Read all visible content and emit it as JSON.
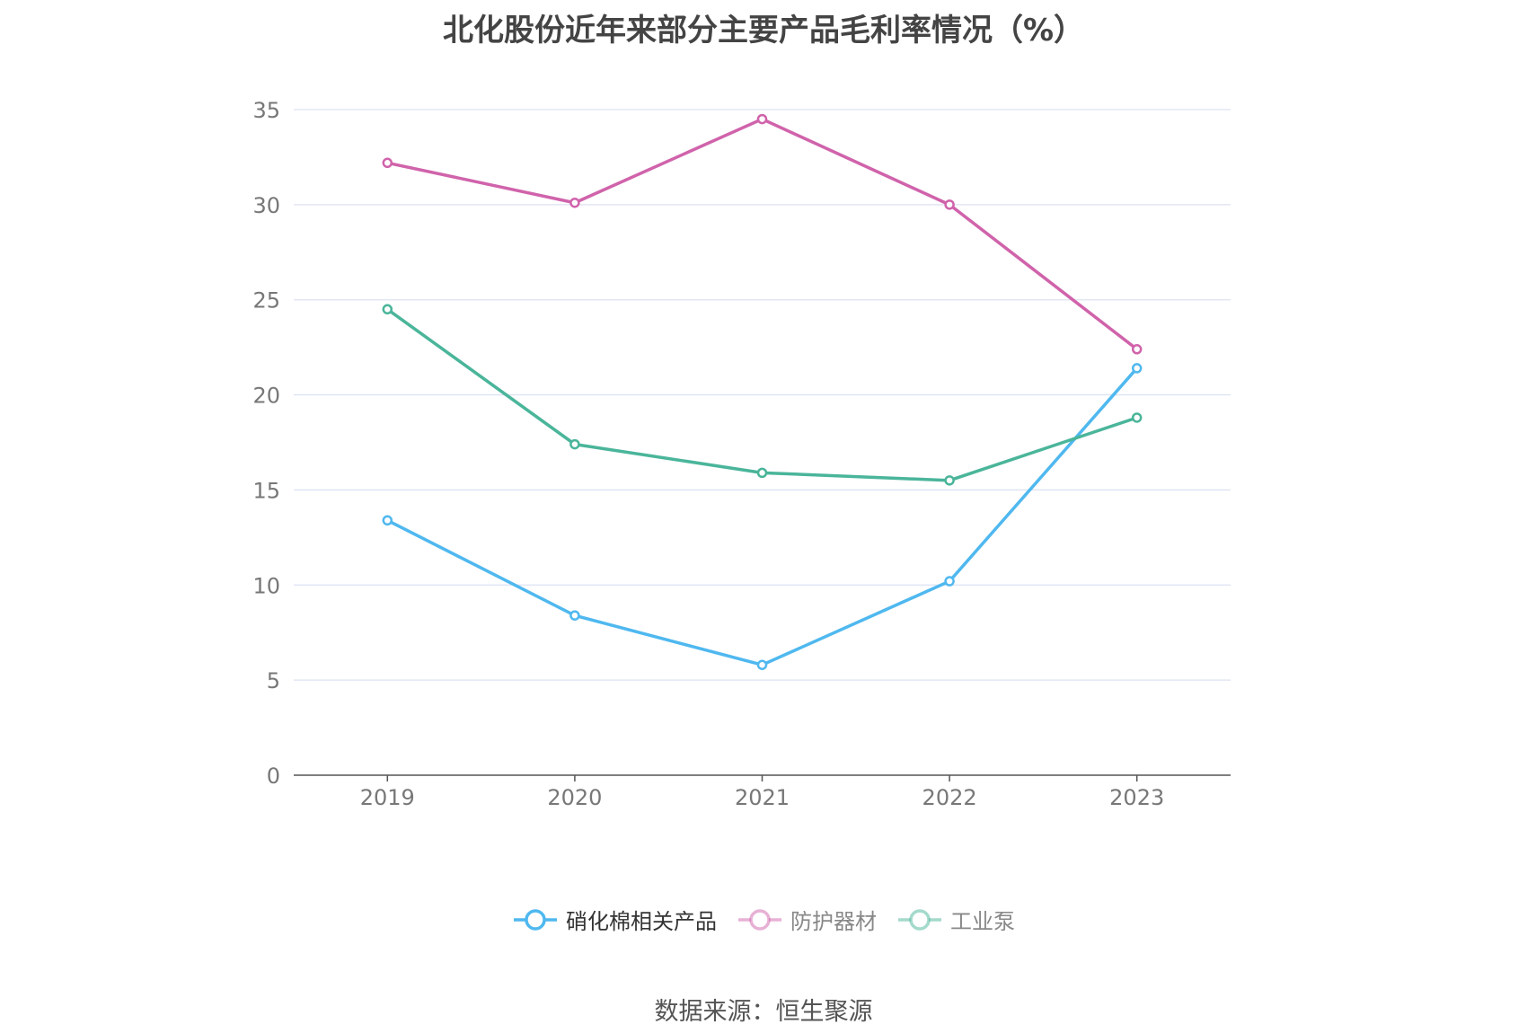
{
  "title": "北化股份近年来部分主要产品毛利率情况（%）",
  "source": "数据来源：恒生聚源",
  "chart_data": {
    "type": "line",
    "title": "北化股份近年来部分主要产品毛利率情况（%）",
    "categories": [
      "2019",
      "2020",
      "2021",
      "2022",
      "2023"
    ],
    "ylim": [
      0,
      35
    ],
    "yticks": [
      0,
      5,
      10,
      15,
      20,
      25,
      30,
      35
    ],
    "grid": true,
    "legend_position": "bottom",
    "series": [
      {
        "name": "硝化棉相关产品",
        "color": "#4fb8ef",
        "values": [
          13.4,
          8.4,
          5.8,
          10.2,
          21.4
        ]
      },
      {
        "name": "防护器材",
        "color": "#d063ab",
        "values": [
          32.2,
          30.1,
          34.5,
          30.0,
          22.4
        ]
      },
      {
        "name": "工业泵",
        "color": "#4ab59a",
        "values": [
          24.5,
          17.4,
          15.9,
          15.5,
          18.8
        ]
      }
    ]
  },
  "colors": {
    "axis": "#555555",
    "grid": "#dde2f2",
    "tick_text": "#777777",
    "legend_text_active": "#333333",
    "legend_text_inactive": "#888888"
  }
}
